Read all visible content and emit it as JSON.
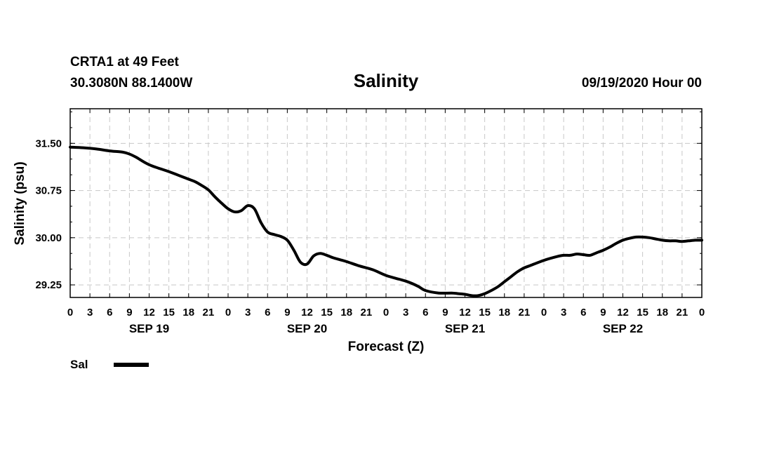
{
  "header": {
    "station": "CRTA1 at 49 Feet",
    "coords": "30.3080N 88.1400W",
    "datetime": "09/19/2020 Hour 00"
  },
  "legend": {
    "label": "Sal",
    "color": "#000000"
  },
  "chart_data": {
    "type": "line",
    "title": "Salinity",
    "xlabel": "Forecast (Z)",
    "ylabel": "Salinity (psu)",
    "x_unit": "hours since 09/19/2020 00Z",
    "xlim": [
      0,
      96
    ],
    "ylim": [
      29.05,
      32.05
    ],
    "y_ticks": [
      29.25,
      30.0,
      30.75,
      31.5
    ],
    "y_tick_labels": [
      "29.25",
      "30.00",
      "30.75",
      "31.50"
    ],
    "x_ticks": [
      0,
      3,
      6,
      9,
      12,
      15,
      18,
      21,
      24,
      27,
      30,
      33,
      36,
      39,
      42,
      45,
      48,
      51,
      54,
      57,
      60,
      63,
      66,
      69,
      72,
      75,
      78,
      81,
      84,
      87,
      90,
      93,
      96
    ],
    "x_tick_labels": [
      "0",
      "3",
      "6",
      "9",
      "12",
      "15",
      "18",
      "21",
      "0",
      "3",
      "6",
      "9",
      "12",
      "15",
      "18",
      "21",
      "0",
      "3",
      "6",
      "9",
      "12",
      "15",
      "18",
      "21",
      "0",
      "3",
      "6",
      "9",
      "12",
      "15",
      "18",
      "21",
      "0"
    ],
    "date_labels": [
      {
        "x": 12,
        "label": "SEP 19"
      },
      {
        "x": 36,
        "label": "SEP 20"
      },
      {
        "x": 60,
        "label": "SEP 21"
      },
      {
        "x": 84,
        "label": "SEP 22"
      }
    ],
    "grid": true,
    "series": [
      {
        "name": "Sal",
        "x": [
          0,
          2,
          4,
          6,
          8,
          9,
          10,
          12,
          15,
          18,
          19,
          20,
          21,
          22,
          23,
          24,
          25,
          26,
          27,
          28,
          29,
          30,
          31,
          32,
          33,
          34,
          35,
          36,
          37,
          38,
          39,
          40,
          41,
          42,
          44,
          46,
          48,
          50,
          51,
          52,
          53,
          54,
          56,
          58,
          59,
          60,
          61,
          62,
          63,
          64,
          65,
          66,
          67,
          68,
          69,
          70,
          72,
          74,
          75,
          76,
          77,
          78,
          79,
          80,
          81,
          82,
          83,
          84,
          85,
          86,
          87,
          88,
          89,
          90,
          91,
          92,
          93,
          94,
          95,
          96
        ],
        "values": [
          31.44,
          31.43,
          31.41,
          31.38,
          31.36,
          31.33,
          31.28,
          31.16,
          31.05,
          30.93,
          30.89,
          30.83,
          30.76,
          30.65,
          30.55,
          30.46,
          30.41,
          30.43,
          30.51,
          30.46,
          30.24,
          30.09,
          30.05,
          30.02,
          29.96,
          29.8,
          29.61,
          29.58,
          29.71,
          29.75,
          29.72,
          29.68,
          29.65,
          29.62,
          29.55,
          29.49,
          29.4,
          29.34,
          29.31,
          29.27,
          29.22,
          29.16,
          29.12,
          29.12,
          29.11,
          29.1,
          29.08,
          29.08,
          29.11,
          29.16,
          29.22,
          29.3,
          29.38,
          29.46,
          29.52,
          29.56,
          29.64,
          29.7,
          29.72,
          29.72,
          29.74,
          29.73,
          29.72,
          29.76,
          29.8,
          29.85,
          29.91,
          29.96,
          29.99,
          30.01,
          30.01,
          30.0,
          29.98,
          29.96,
          29.95,
          29.95,
          29.94,
          29.95,
          29.96,
          29.96
        ]
      }
    ]
  }
}
